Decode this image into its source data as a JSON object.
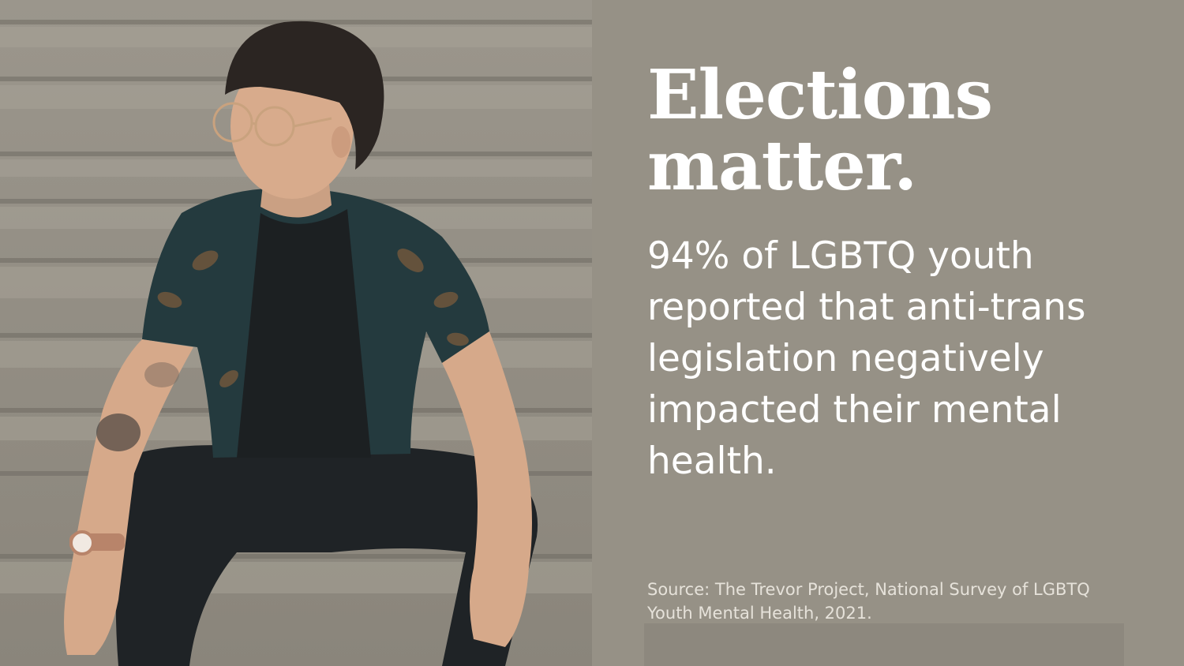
{
  "headline": {
    "line1": "Elections",
    "line2": "matter."
  },
  "stat": {
    "text": "94% of LGBTQ youth reported that anti-trans legislation negatively impacted their mental health."
  },
  "source": {
    "text": "Source: The Trevor Project, National Survey of LGBTQ Youth Mental Health, 2021."
  },
  "colors": {
    "panel_background": "#969186",
    "headline_text": "#ffffff",
    "body_text": "#ffffff",
    "source_text": "#e6e2da"
  }
}
